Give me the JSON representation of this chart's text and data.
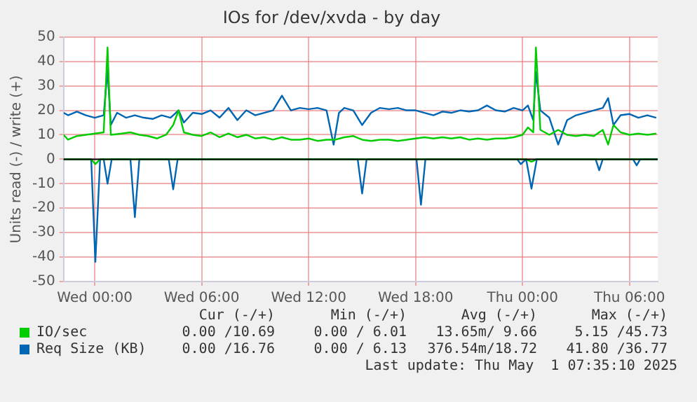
{
  "chart_data": {
    "type": "line",
    "title": "IOs for /dev/xvda - by day",
    "ylabel": "Units read (-) / write (+)",
    "xlim": [
      "2025-04-29T22:15",
      "2025-05-01T07:35"
    ],
    "xticks": [
      {
        "value": "2025-04-30T00:00",
        "label": "Wed 00:00"
      },
      {
        "value": "2025-04-30T06:00",
        "label": "Wed 06:00"
      },
      {
        "value": "2025-04-30T12:00",
        "label": "Wed 12:00"
      },
      {
        "value": "2025-04-30T18:00",
        "label": "Wed 18:00"
      },
      {
        "value": "2025-05-01T00:00",
        "label": "Thu 00:00"
      },
      {
        "value": "2025-05-01T06:00",
        "label": "Thu 06:00"
      }
    ],
    "ylim": [
      -50,
      50
    ],
    "yticks": [
      -50,
      -40,
      -30,
      -20,
      -10,
      0,
      10,
      20,
      30,
      40,
      50
    ],
    "grid": true,
    "legend": "bottom",
    "marker": "none",
    "line_style": "solid",
    "series": [
      {
        "name": "IO/sec",
        "color": "#00cc00",
        "x": [
          "2025-04-29T22:15",
          "2025-04-29T22:30",
          "2025-04-29T23:00",
          "2025-04-29T23:30",
          "2025-04-30T00:00",
          "2025-04-30T00:30",
          "2025-04-30T00:43",
          "2025-04-30T00:54",
          "2025-04-30T01:30",
          "2025-04-30T02:00",
          "2025-04-30T02:30",
          "2025-04-30T03:00",
          "2025-04-30T03:30",
          "2025-04-30T04:00",
          "2025-04-30T04:24",
          "2025-04-30T04:42",
          "2025-04-30T05:00",
          "2025-04-30T05:30",
          "2025-04-30T06:00",
          "2025-04-30T06:30",
          "2025-04-30T07:00",
          "2025-04-30T07:30",
          "2025-04-30T08:00",
          "2025-04-30T08:30",
          "2025-04-30T09:00",
          "2025-04-30T09:30",
          "2025-04-30T10:00",
          "2025-04-30T10:30",
          "2025-04-30T11:00",
          "2025-04-30T11:30",
          "2025-04-30T12:00",
          "2025-04-30T12:30",
          "2025-04-30T13:00",
          "2025-04-30T13:30",
          "2025-04-30T14:00",
          "2025-04-30T14:30",
          "2025-04-30T15:00",
          "2025-04-30T15:30",
          "2025-04-30T16:00",
          "2025-04-30T16:30",
          "2025-04-30T17:00",
          "2025-04-30T17:30",
          "2025-04-30T18:00",
          "2025-04-30T18:30",
          "2025-04-30T19:00",
          "2025-04-30T19:30",
          "2025-04-30T20:00",
          "2025-04-30T20:30",
          "2025-04-30T21:00",
          "2025-04-30T21:30",
          "2025-04-30T22:00",
          "2025-04-30T22:30",
          "2025-04-30T23:00",
          "2025-04-30T23:30",
          "2025-05-01T00:00",
          "2025-05-01T00:18",
          "2025-05-01T00:36",
          "2025-05-01T00:45",
          "2025-05-01T01:00",
          "2025-05-01T01:30",
          "2025-05-01T02:00",
          "2025-05-01T02:30",
          "2025-05-01T03:00",
          "2025-05-01T03:30",
          "2025-05-01T04:00",
          "2025-05-01T04:30",
          "2025-05-01T04:48",
          "2025-05-01T05:06",
          "2025-05-01T05:30",
          "2025-05-01T06:00",
          "2025-05-01T06:30",
          "2025-05-01T07:00",
          "2025-05-01T07:30"
        ],
        "values": [
          10,
          8,
          9.5,
          10,
          10.5,
          11,
          45.7,
          10,
          10.5,
          11,
          10,
          9.5,
          8.5,
          10,
          14,
          20,
          11,
          10,
          9.5,
          11,
          9,
          10.5,
          9,
          10,
          8.5,
          9,
          8,
          9,
          8,
          8,
          8.5,
          7.5,
          8,
          8,
          9,
          9.5,
          8,
          7.5,
          8,
          8,
          7.5,
          8,
          8.5,
          9,
          8.5,
          9,
          8.5,
          9,
          8,
          8.5,
          8,
          8.5,
          8.5,
          9,
          10,
          13,
          11,
          45.7,
          12,
          10,
          12,
          10,
          9.5,
          10,
          9.5,
          12,
          6,
          14,
          11,
          10,
          10.5,
          10,
          10.5
        ]
      },
      {
        "name": "Req Size (KB)",
        "color": "#0066b3",
        "x": [
          "2025-04-29T22:15",
          "2025-04-29T22:30",
          "2025-04-29T23:00",
          "2025-04-29T23:30",
          "2025-04-30T00:00",
          "2025-04-30T00:30",
          "2025-04-30T00:43",
          "2025-04-30T00:54",
          "2025-04-30T01:15",
          "2025-04-30T01:45",
          "2025-04-30T02:15",
          "2025-04-30T02:45",
          "2025-04-30T03:15",
          "2025-04-30T03:45",
          "2025-04-30T04:15",
          "2025-04-30T04:42",
          "2025-04-30T05:00",
          "2025-04-30T05:30",
          "2025-04-30T06:00",
          "2025-04-30T06:30",
          "2025-04-30T07:00",
          "2025-04-30T07:30",
          "2025-04-30T08:00",
          "2025-04-30T08:30",
          "2025-04-30T09:00",
          "2025-04-30T09:30",
          "2025-04-30T10:00",
          "2025-04-30T10:30",
          "2025-04-30T11:00",
          "2025-04-30T11:30",
          "2025-04-30T12:00",
          "2025-04-30T12:30",
          "2025-04-30T13:00",
          "2025-04-30T13:24",
          "2025-04-30T13:42",
          "2025-04-30T14:00",
          "2025-04-30T14:30",
          "2025-04-30T15:00",
          "2025-04-30T15:30",
          "2025-04-30T16:00",
          "2025-04-30T16:30",
          "2025-04-30T17:00",
          "2025-04-30T17:30",
          "2025-04-30T18:00",
          "2025-04-30T18:30",
          "2025-04-30T19:00",
          "2025-04-30T19:30",
          "2025-04-30T20:00",
          "2025-04-30T20:30",
          "2025-04-30T21:00",
          "2025-04-30T21:30",
          "2025-04-30T22:00",
          "2025-04-30T22:30",
          "2025-04-30T23:00",
          "2025-04-30T23:30",
          "2025-05-01T00:00",
          "2025-05-01T00:18",
          "2025-05-01T00:36",
          "2025-05-01T00:45",
          "2025-05-01T01:00",
          "2025-05-01T01:30",
          "2025-05-01T02:00",
          "2025-05-01T02:30",
          "2025-05-01T03:00",
          "2025-05-01T03:30",
          "2025-05-01T04:00",
          "2025-05-01T04:30",
          "2025-05-01T04:48",
          "2025-05-01T05:06",
          "2025-05-01T05:30",
          "2025-05-01T06:00",
          "2025-05-01T06:30",
          "2025-05-01T07:00",
          "2025-05-01T07:30"
        ],
        "values": [
          19,
          18,
          19.5,
          18,
          17,
          18,
          36.5,
          14,
          19,
          17,
          18,
          17,
          16.5,
          18,
          17,
          20,
          15,
          19,
          18.5,
          20,
          17,
          21,
          16,
          20,
          18,
          19,
          20,
          26,
          20,
          21,
          20.5,
          21,
          20,
          6,
          19,
          21,
          20,
          14,
          19,
          21,
          20.5,
          21,
          20,
          20,
          19,
          18,
          19.5,
          19,
          20,
          19.5,
          20,
          22,
          20,
          19.5,
          21,
          20,
          22,
          16,
          35.7,
          20,
          17,
          6,
          16,
          18,
          19,
          20,
          21,
          25,
          14,
          18,
          18.5,
          17,
          18,
          17
        ]
      },
      {
        "color": "#00cc00",
        "x": [
          "2025-04-29T22:15",
          "2025-04-29T23:48",
          "2025-04-30T00:02",
          "2025-04-30T00:18",
          "2025-05-01T00:12",
          "2025-05-01T00:30",
          "2025-05-01T00:48",
          "2025-05-01T07:35"
        ],
        "values": [
          0,
          0,
          -2,
          0,
          0,
          -1,
          0,
          0
        ]
      },
      {
        "color": "#0066b3",
        "x": [
          "2025-04-29T22:15",
          "2025-04-29T23:48",
          "2025-04-30T00:02",
          "2025-04-30T00:18",
          "2025-04-30T00:30",
          "2025-04-30T00:43",
          "2025-04-30T00:57",
          "2025-04-30T02:00",
          "2025-04-30T02:15",
          "2025-04-30T02:30",
          "2025-04-30T04:09",
          "2025-04-30T04:24",
          "2025-04-30T04:39",
          "2025-04-30T14:45",
          "2025-04-30T15:00",
          "2025-04-30T15:15",
          "2025-04-30T18:03",
          "2025-04-30T18:18",
          "2025-04-30T18:33",
          "2025-04-30T23:42",
          "2025-04-30T23:54",
          "2025-05-01T00:12",
          "2025-05-01T00:30",
          "2025-05-01T00:48",
          "2025-05-01T04:06",
          "2025-05-01T04:18",
          "2025-05-01T04:30",
          "2025-05-01T06:12",
          "2025-05-01T06:24",
          "2025-05-01T06:36",
          "2025-05-01T07:35"
        ],
        "values": [
          0,
          0,
          -42,
          0,
          0,
          -10,
          0,
          0,
          -23.7,
          0,
          0,
          -12.3,
          0,
          0,
          -14,
          0,
          0,
          -18.6,
          0,
          0,
          -2,
          0,
          -12,
          0,
          0,
          -4.5,
          0,
          0,
          -2.5,
          0,
          0
        ]
      }
    ],
    "annotations": [
      "Cur (-/+)",
      "Min (-/+)",
      "Avg (-/+)",
      "Max (-/+)",
      "0.00 /10.69",
      "0.00 / 6.01",
      "13.65m/ 9.66",
      "5.15 /45.73",
      "0.00 /16.76",
      "0.00 / 6.13",
      "376.54m/18.72",
      "41.80 /36.77",
      "Last update: Thu May  1 07:35:10 2025"
    ]
  }
}
